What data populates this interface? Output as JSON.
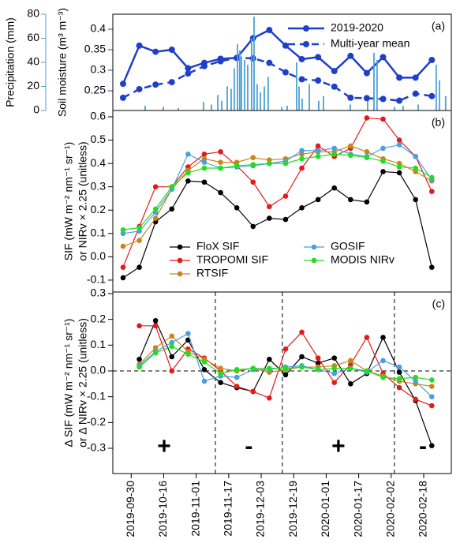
{
  "chart_data": [
    {
      "type": "line",
      "panel_label": "(a)",
      "xlim": [
        0.37,
        21.2
      ],
      "ylim": [
        0.202,
        0.4365
      ],
      "yticks": [
        0.25,
        0.3,
        0.35,
        0.4
      ],
      "ylabel": [
        "Soil moisture (m³ m⁻³)"
      ],
      "ylabel_color": "#1f3fc9",
      "y2lim": [
        0,
        80
      ],
      "y2ticks": [
        0,
        20,
        40,
        60,
        80
      ],
      "y2label": "Precipitation (mm)",
      "y2color": "#4aa3d6",
      "legend": "upper right",
      "x": [
        1,
        2,
        3,
        4,
        5,
        6,
        7,
        8,
        9,
        10,
        11,
        12,
        13,
        14,
        15,
        16,
        17,
        18,
        19,
        20
      ],
      "series": [
        {
          "name": "2019-2020",
          "color": "#1f3fc9",
          "linestyle": "solid",
          "values": [
            0.267,
            0.36,
            0.345,
            0.35,
            0.305,
            0.318,
            0.328,
            0.33,
            0.378,
            0.398,
            0.36,
            0.327,
            0.332,
            0.298,
            0.335,
            0.293,
            0.332,
            0.282,
            0.282,
            0.325
          ]
        },
        {
          "name": "Multi-year mean",
          "color": "#1f3fc9",
          "linestyle": "dashed",
          "values": [
            0.233,
            0.254,
            0.265,
            0.271,
            0.292,
            0.31,
            0.322,
            0.33,
            0.329,
            0.318,
            0.295,
            0.278,
            0.275,
            0.26,
            0.233,
            0.232,
            0.23,
            0.226,
            0.243,
            0.237
          ]
        },
        {
          "type": "bar",
          "axis": "y2",
          "color": "#4aa3d6",
          "x": [
            2.36,
            3.48,
            4.4,
            5.95,
            6.44,
            6.83,
            7.07,
            7.41,
            7.65,
            7.84,
            8.04,
            8.18,
            8.28,
            8.48,
            8.67,
            8.91,
            9.06,
            9.25,
            9.45,
            9.69,
            9.93,
            10.76,
            11.1,
            11.68,
            11.83,
            12.02,
            12.46,
            13.04,
            13.33,
            14.98,
            16.05,
            16.44,
            16.63,
            17.7,
            18.23,
            19.16,
            20.27,
            20.47,
            20.85
          ],
          "values": [
            4,
            3,
            2,
            7,
            5,
            13,
            8,
            20,
            18,
            35,
            55,
            50,
            45,
            42,
            38,
            60,
            78,
            22,
            15,
            20,
            28,
            3,
            4,
            40,
            20,
            10,
            22,
            8,
            12,
            5,
            8,
            48,
            42,
            3,
            4,
            5,
            38,
            25,
            12
          ]
        }
      ]
    },
    {
      "type": "line",
      "panel_label": "(b)",
      "xlim": [
        0.37,
        21.2
      ],
      "ylim": [
        -0.151,
        0.627
      ],
      "yticks": [
        -0.1,
        {
          "value": 0,
          "label": "0.0"
        },
        0.1,
        0.2,
        0.3,
        0.4,
        0.5,
        0.6
      ],
      "ylabel": [
        "SIF (mW m⁻² nm⁻¹ sr⁻¹)",
        "or NIRv × 2.25 (unitless)"
      ],
      "legend": "lower center",
      "x": [
        1,
        2,
        3,
        4,
        5,
        6,
        7,
        8,
        9,
        10,
        11,
        12,
        13,
        14,
        15,
        16,
        17,
        18,
        19,
        20
      ],
      "series": [
        {
          "name": "FloX SIF",
          "color": "#000000",
          "values": [
            -0.09,
            -0.045,
            0.15,
            0.205,
            0.325,
            0.32,
            0.275,
            0.21,
            0.13,
            0.165,
            0.16,
            0.21,
            0.245,
            0.295,
            0.245,
            0.235,
            0.365,
            0.36,
            0.245,
            -0.045
          ]
        },
        {
          "name": "TROPOMI SIF",
          "color": "#e31a1c",
          "values": [
            -0.045,
            0.13,
            0.3,
            0.3,
            0.385,
            0.44,
            0.45,
            0.39,
            0.32,
            0.215,
            0.26,
            0.38,
            0.475,
            0.43,
            0.465,
            0.595,
            0.59,
            0.5,
            0.43,
            0.28
          ]
        },
        {
          "name": "RTSIF",
          "color": "#c8861a",
          "values": [
            0.045,
            0.07,
            0.165,
            0.29,
            0.37,
            0.42,
            0.405,
            0.405,
            0.425,
            0.415,
            0.42,
            0.44,
            0.45,
            0.45,
            0.475,
            0.45,
            0.42,
            0.4,
            0.365,
            0.325
          ]
        },
        {
          "name": "GOSIF",
          "color": "#4a9fe0",
          "values": [
            0.1,
            0.11,
            0.19,
            0.29,
            0.44,
            0.405,
            0.38,
            0.385,
            0.39,
            0.4,
            0.41,
            0.455,
            0.455,
            0.465,
            0.44,
            0.43,
            0.465,
            0.48,
            0.43,
            0.33
          ]
        },
        {
          "name": "MODIS NIRv",
          "color": "#22dd22",
          "values": [
            0.115,
            0.125,
            0.205,
            0.3,
            0.36,
            0.38,
            0.38,
            0.39,
            0.395,
            0.4,
            0.4,
            0.42,
            0.43,
            0.44,
            0.435,
            0.425,
            0.41,
            0.385,
            0.38,
            0.34
          ]
        }
      ]
    },
    {
      "type": "line",
      "panel_label": "(c)",
      "xlim": [
        0.37,
        21.2
      ],
      "ylim": [
        -0.398,
        0.306
      ],
      "yticks": [
        -0.3,
        -0.2,
        -0.1,
        {
          "value": 0,
          "label": "0.0"
        },
        0.1,
        0.2,
        0.3
      ],
      "ylabel": [
        "Δ SIF (mW m⁻² nm⁻¹ sr⁻¹)",
        "or Δ NIRv × 2.25 (unitless)"
      ],
      "zero_line": true,
      "vlines": [
        6.68,
        10.8,
        17.7
      ],
      "annotations": [
        {
          "text": "+",
          "color": "#e31a1c"
        },
        {
          "text": "-",
          "color": "#1f3fc9"
        },
        {
          "text": "+",
          "color": "#e31a1c"
        },
        {
          "text": "-",
          "color": "#1f3fc9"
        }
      ],
      "xticks": [
        {
          "value": 1.5,
          "label": "2019-09-30"
        },
        {
          "value": 3.5,
          "label": "2019-10-16"
        },
        {
          "value": 5.5,
          "label": "2019-11-01"
        },
        {
          "value": 7.5,
          "label": "2019-11-17"
        },
        {
          "value": 9.5,
          "label": "2019-12-03"
        },
        {
          "value": 11.5,
          "label": "2019-12-19"
        },
        {
          "value": 13.5,
          "label": "2020-01-01"
        },
        {
          "value": 15.5,
          "label": "2020-01-17"
        },
        {
          "value": 17.5,
          "label": "2020-02-02"
        },
        {
          "value": 19.5,
          "label": "2020-02-18"
        }
      ],
      "x": [
        2,
        3,
        4,
        5,
        6,
        7,
        8,
        9,
        10,
        11,
        12,
        13,
        14,
        15,
        16,
        17,
        18,
        19,
        20
      ],
      "series": [
        {
          "color": "#000000",
          "values": [
            0.045,
            0.195,
            0.055,
            0.12,
            0.005,
            -0.045,
            -0.065,
            -0.08,
            0.045,
            -0.015,
            0.055,
            0.03,
            0.05,
            -0.05,
            -0.01,
            0.13,
            -0.005,
            -0.115,
            -0.29
          ]
        },
        {
          "color": "#e31a1c",
          "values": [
            0.175,
            0.175,
            0.0,
            0.085,
            0.05,
            0.0,
            -0.06,
            -0.08,
            -0.105,
            0.085,
            0.15,
            0.05,
            -0.045,
            0.025,
            0.13,
            -0.01,
            -0.065,
            -0.11,
            -0.135
          ]
        },
        {
          "color": "#c8861a",
          "values": [
            0.025,
            0.09,
            0.135,
            0.075,
            0.045,
            0.01,
            0.0,
            0.01,
            -0.005,
            0.005,
            0.015,
            0.015,
            0.02,
            0.04,
            0.0,
            -0.02,
            -0.04,
            -0.05,
            -0.06
          ]
        },
        {
          "color": "#4a9fe0",
          "values": [
            0.02,
            0.075,
            0.11,
            0.145,
            -0.04,
            -0.02,
            -0.025,
            0.005,
            0.005,
            0.015,
            0.02,
            0.005,
            -0.01,
            0.01,
            -0.005,
            0.04,
            0.015,
            -0.04,
            -0.1
          ]
        },
        {
          "color": "#22dd22",
          "values": [
            0.015,
            0.07,
            0.095,
            0.065,
            0.035,
            -0.01,
            0.005,
            0.01,
            0.01,
            0.01,
            0.015,
            0.005,
            0.01,
            0.01,
            0.0,
            -0.025,
            -0.03,
            -0.025,
            -0.035
          ]
        }
      ]
    }
  ]
}
